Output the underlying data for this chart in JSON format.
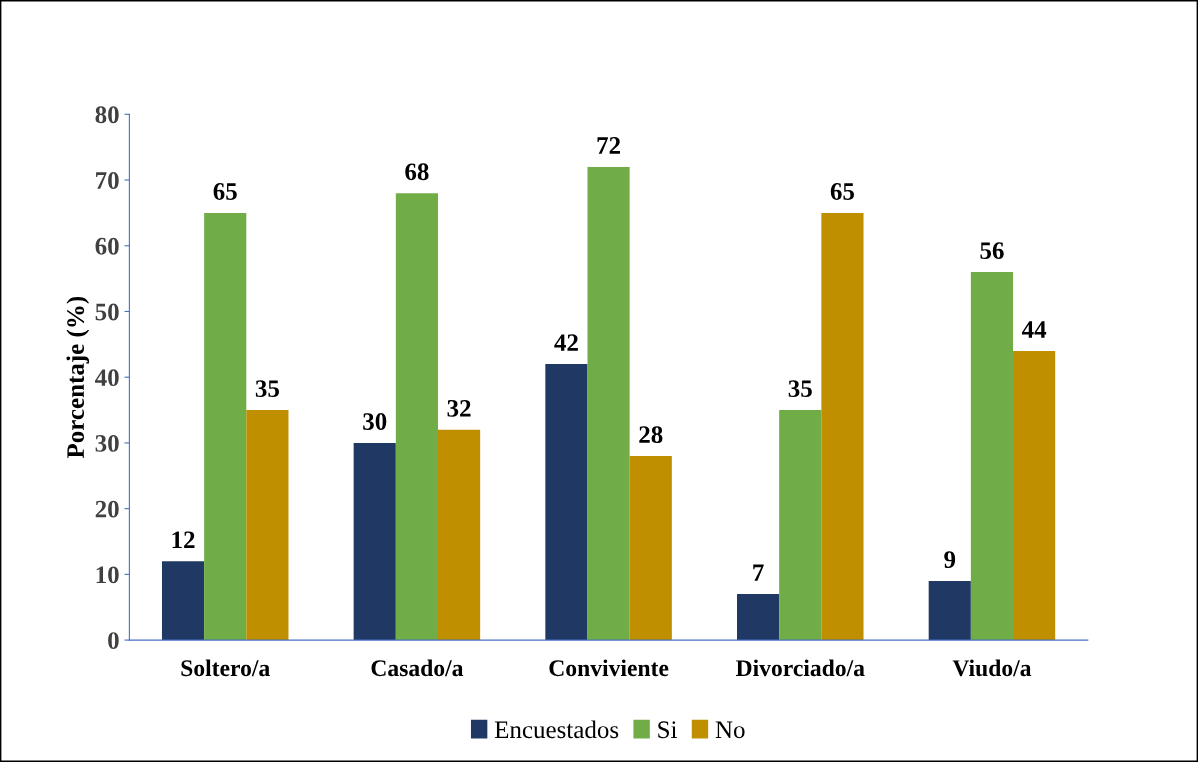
{
  "chart_data": {
    "type": "bar",
    "ylabel": "Porcentaje (%)",
    "categories": [
      "Soltero/a",
      "Casado/a",
      "Conviviente",
      "Divorciado/a",
      "Viudo/a"
    ],
    "series": [
      {
        "name": "Encuestados",
        "color": "#1f3864",
        "values": [
          12,
          30,
          42,
          7,
          9
        ]
      },
      {
        "name": "Si",
        "color": "#70ad47",
        "values": [
          65,
          68,
          72,
          35,
          56
        ]
      },
      {
        "name": "No",
        "color": "#bf8f00",
        "values": [
          35,
          32,
          28,
          65,
          44
        ]
      }
    ],
    "ylim": [
      0,
      80
    ],
    "yticks": [
      0,
      10,
      20,
      30,
      40,
      50,
      60,
      70,
      80
    ],
    "data_labels": true,
    "grid": false,
    "legend": "bottom"
  }
}
